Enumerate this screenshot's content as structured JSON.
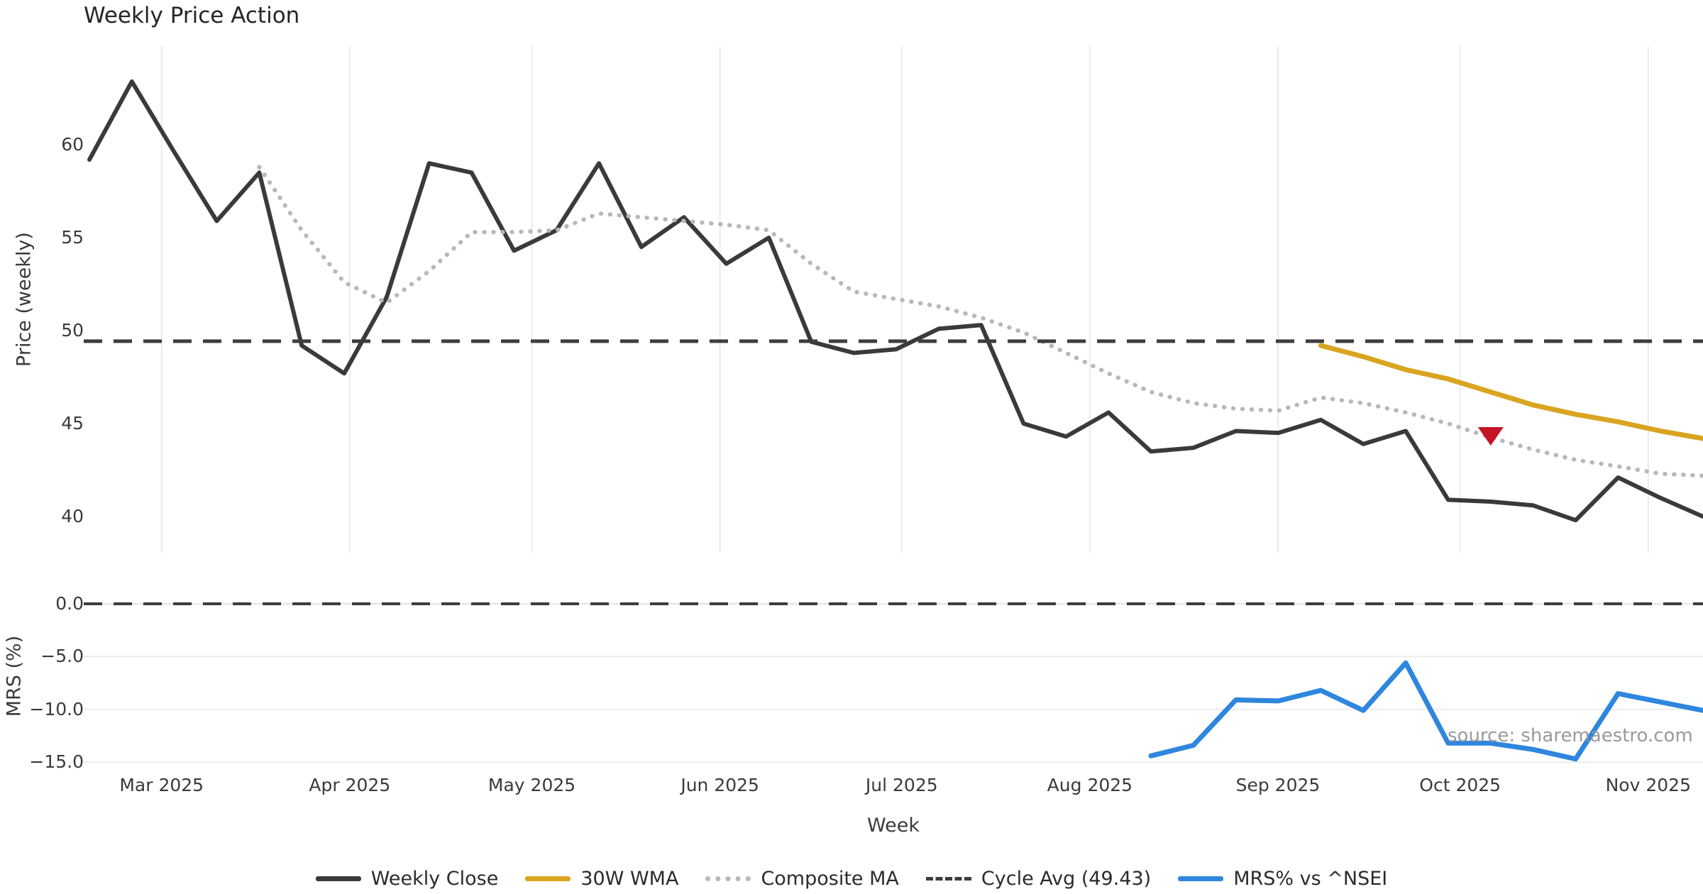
{
  "title": "Weekly Price Action",
  "source_note": "source: sharemaestro.com",
  "colors": {
    "weekly_close": "#3a3a3a",
    "wma_30w": "#d9a420",
    "composite_ma": "#b8b8b8",
    "cycle_avg": "#3d3d3d",
    "mrs": "#2e86de",
    "sell_marker": "#c41425",
    "gridline": "#ebebeb",
    "tick_text": "#3a3a3a",
    "source_text": "#9a9a9a"
  },
  "chart_data": {
    "type": "line",
    "title": "Weekly Price Action",
    "xlabel": "Week",
    "x_axis": {
      "unit": "week_index",
      "weeks_total": 39,
      "month_ticks": [
        {
          "label": "Mar 2025",
          "week": 2.7
        },
        {
          "label": "Apr 2025",
          "week": 7.13
        },
        {
          "label": "May 2025",
          "week": 11.42
        },
        {
          "label": "Jun 2025",
          "week": 15.85
        },
        {
          "label": "Jul 2025",
          "week": 20.13
        },
        {
          "label": "Aug 2025",
          "week": 24.56
        },
        {
          "label": "Sep 2025",
          "week": 28.99
        },
        {
          "label": "Oct 2025",
          "week": 33.28
        },
        {
          "label": "Nov 2025",
          "week": 37.71
        }
      ]
    },
    "panels": [
      {
        "name": "price",
        "ylabel": "Price (weekly)",
        "ylim": [
          38.0,
          65.5
        ],
        "yticks": [
          60,
          55,
          50,
          45,
          40
        ],
        "grid": "vertical-months",
        "series": [
          {
            "name": "Weekly Close",
            "style": "solid",
            "color": "#3a3a3a",
            "width": 6,
            "start_week": 1,
            "values": [
              59.2,
              63.4,
              59.6,
              55.9,
              58.5,
              49.2,
              47.7,
              51.8,
              59.0,
              58.5,
              54.3,
              55.4,
              59.0,
              54.5,
              56.1,
              53.6,
              55.0,
              49.4,
              48.8,
              49.0,
              50.1,
              50.3,
              45.0,
              44.3,
              45.6,
              43.5,
              43.7,
              44.6,
              44.5,
              45.2,
              43.9,
              44.6,
              40.9,
              40.8,
              40.6,
              39.8,
              42.1,
              41.0,
              40.0
            ]
          },
          {
            "name": "Composite MA",
            "style": "dotted",
            "color": "#b8b8b8",
            "width": 6,
            "start_week": 5,
            "values": [
              58.8,
              55.4,
              52.6,
              51.5,
              53.2,
              55.3,
              55.3,
              55.4,
              56.3,
              56.1,
              55.9,
              55.7,
              55.4,
              53.6,
              52.1,
              51.7,
              51.3,
              50.7,
              49.9,
              48.8,
              47.7,
              46.7,
              46.1,
              45.8,
              45.7,
              46.4,
              46.1,
              45.6,
              45.0,
              44.25,
              43.6,
              43.05,
              42.7,
              42.3,
              42.2
            ]
          },
          {
            "name": "30W WMA",
            "style": "solid",
            "color": "#d9a420",
            "width": 7,
            "start_week": 30,
            "values": [
              49.2,
              48.6,
              47.9,
              47.4,
              46.7,
              46.0,
              45.5,
              45.1,
              44.6,
              44.2
            ]
          },
          {
            "name": "Cycle Avg",
            "style": "dashed",
            "color": "#3d3d3d",
            "width": 5,
            "constant": 49.43
          }
        ],
        "marker": {
          "shape": "triangle-down",
          "color": "#c41425",
          "week": 34,
          "price": 44.35
        }
      },
      {
        "name": "mrs",
        "ylabel": "MRS (%)",
        "ylim": [
          -15.8,
          2.0
        ],
        "yticks": [
          0.0,
          -5.0,
          -10.0,
          -15.0
        ],
        "grid": "horizontal",
        "series": [
          {
            "name": "MRS% vs ^NSEI",
            "style": "solid",
            "color": "#2e86de",
            "width": 7,
            "start_week": 26,
            "values": [
              -14.4,
              -13.4,
              -9.1,
              -9.2,
              -8.2,
              -10.1,
              -5.6,
              -13.2,
              -13.2,
              -13.8,
              -14.7,
              -8.5,
              -9.3,
              -10.1
            ]
          },
          {
            "name": "Zero line",
            "style": "dashed",
            "color": "#3d3d3d",
            "width": 4,
            "constant": 0.0
          }
        ]
      }
    ]
  },
  "legend": {
    "items": [
      {
        "label": "Weekly Close",
        "color": "#3a3a3a",
        "style": "solid"
      },
      {
        "label": "30W WMA",
        "color": "#d9a420",
        "style": "solid"
      },
      {
        "label": "Composite MA",
        "color": "#b8b8b8",
        "style": "dotted"
      },
      {
        "label": "Cycle Avg (49.43)",
        "color": "#3d3d3d",
        "style": "dashed"
      },
      {
        "label": "MRS% vs ^NSEI",
        "color": "#2e86de",
        "style": "solid"
      }
    ]
  }
}
